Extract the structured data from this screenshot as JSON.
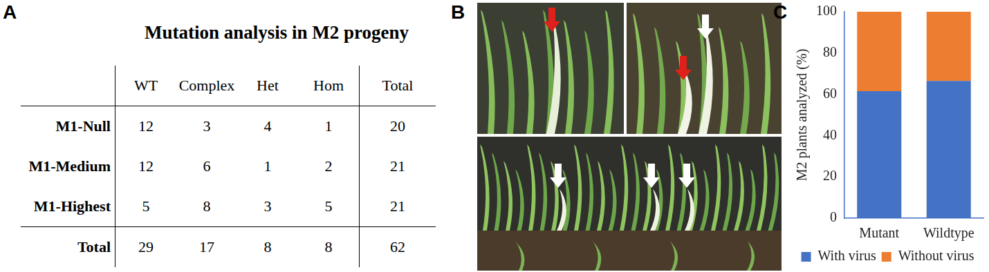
{
  "panel_a": {
    "label": "A",
    "title": "Mutation analysis in M2 progeny",
    "table": {
      "header": [
        null,
        "WT",
        "Complex",
        "Het",
        "Hom",
        "Total"
      ],
      "rows": [
        [
          "M1-Null",
          12,
          3,
          4,
          1,
          20
        ],
        [
          "M1-Medium",
          12,
          6,
          1,
          2,
          21
        ],
        [
          "M1-Highest",
          5,
          8,
          3,
          5,
          21
        ],
        [
          "Total",
          29,
          17,
          8,
          8,
          62
        ]
      ]
    }
  },
  "panel_b": {
    "label": "B"
  },
  "panel_c": {
    "label": "C"
  },
  "chart_data": {
    "type": "bar",
    "stacked": true,
    "legend": "bottom",
    "grid": false,
    "y_label": "M2 plants analyzed (%)",
    "categories": [
      "Mutant",
      "Wildtype"
    ],
    "series": [
      {
        "name": "With virus",
        "color": "#4472c4",
        "values": [
          61.5,
          66.5
        ]
      },
      {
        "name": "Without virus",
        "color": "#ed7d31",
        "values": [
          38.5,
          33.5
        ]
      }
    ],
    "ylim": [
      0,
      100
    ],
    "yticks": [
      0,
      20,
      40,
      60,
      80,
      100
    ]
  }
}
